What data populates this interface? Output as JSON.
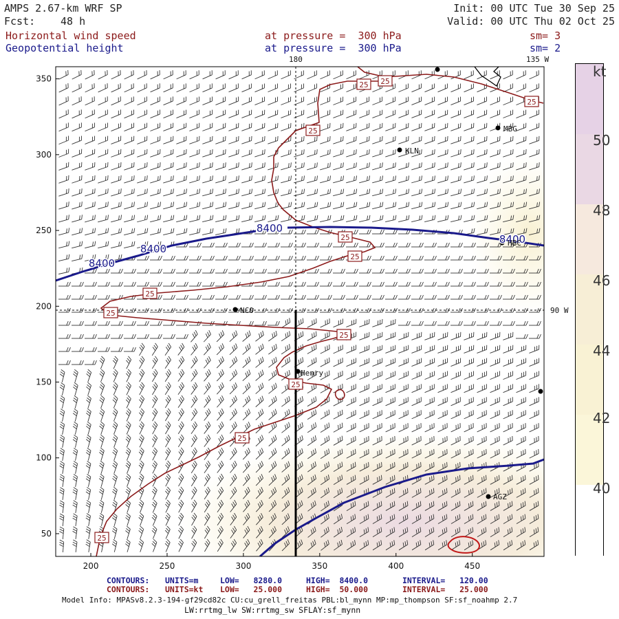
{
  "header": {
    "model": "AMPS 2.67-km WRF SP",
    "fcst_label": "Fcst:",
    "fcst_value": "48 h",
    "init": "Init: 00 UTC Tue 30 Sep 25",
    "valid": "Valid: 00 UTC Thu 02 Oct 25",
    "field1_name": "Horizontal wind speed",
    "field1_level": "at pressure =  300 hPa",
    "field1_sm": "sm= 3",
    "field2_name": "Geopotential height",
    "field2_level": "at pressure =  300 hPa",
    "field2_sm": "sm= 2"
  },
  "map_labels": {
    "lon_180": "180",
    "lon_135w": "135 W",
    "lon_90w": "90 W",
    "stations": [
      "Henry",
      "KLN",
      "NCO",
      "HBC",
      "AGZ",
      "MBG"
    ]
  },
  "contour_labels": {
    "height": "8400",
    "speed": "25"
  },
  "axes": {
    "x_ticks": [
      200,
      250,
      300,
      350,
      400,
      450
    ],
    "y_ticks": [
      50,
      100,
      150,
      200,
      250,
      300,
      350
    ],
    "xlim": [
      177,
      497
    ],
    "ylim": [
      35,
      358
    ]
  },
  "colorbar": {
    "unit": "kt",
    "labels": [
      "50",
      "48",
      "46",
      "44",
      "42",
      "40"
    ],
    "colors": [
      "#e6d2e6",
      "#f3e3e3",
      "#f7ecd6",
      "#f8f1d2",
      "#fbf6d8",
      "#ffffff"
    ]
  },
  "footer": {
    "c1_label": "CONTOURS:",
    "c1_units": "UNITS=m",
    "c1_low": "LOW=   8280.0",
    "c1_high": "HIGH=  8400.0",
    "c1_int": "INTERVAL=   120.00",
    "c2_label": "CONTOURS:",
    "c2_units": "UNITS=kt",
    "c2_low": "LOW=   25.000",
    "c2_high": "HIGH=  50.000",
    "c2_int": "INTERVAL=   25.000",
    "model_info": "Model Info: MPASv8.2.3-194-gf29cd82c CU:cu_grell_freitas PBL:bl_mynn MP:mp_thompson SF:sf_noahmp 2.7",
    "model_info2": "LW:rrtmg_lw SW:rrtmg_sw SFLAY:sf_mynn"
  },
  "colors": {
    "height_contour": "#1a1a8b",
    "speed_contour": "#8b1a1a",
    "barb": "#222222"
  }
}
